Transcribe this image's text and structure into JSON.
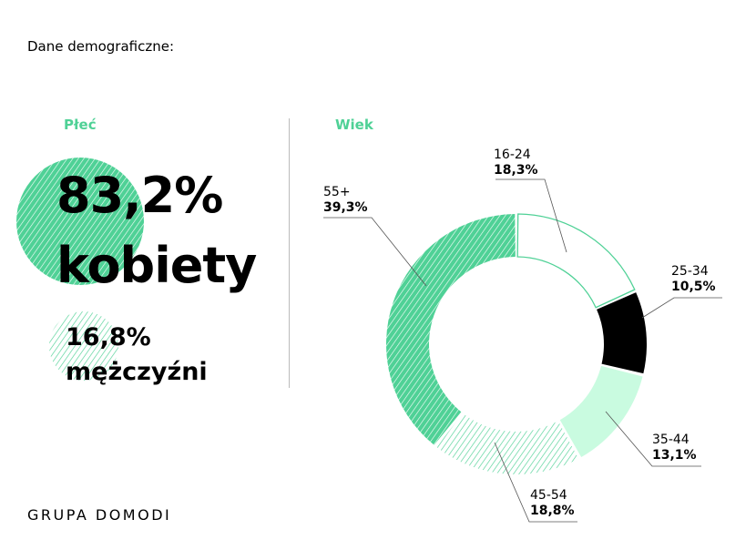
{
  "title": "Dane demograficzne:",
  "gender": {
    "heading": "Płeć",
    "women": {
      "value": "83,2%",
      "label": "kobiety"
    },
    "men": {
      "value": "16,8%",
      "label": "mężczyźni"
    }
  },
  "logo": "GRUPA DOMODI",
  "colors": {
    "green": "#4fd196",
    "mint": "#c9fbe0",
    "black": "#000000"
  },
  "chart_data": {
    "type": "pie",
    "title": "Wiek",
    "categories": [
      "16-24",
      "25-34",
      "35-44",
      "45-54",
      "55+"
    ],
    "values": [
      18.3,
      10.5,
      13.1,
      18.8,
      39.3
    ],
    "value_labels": [
      "18,3%",
      "10,5%",
      "13,1%",
      "18,8%",
      "39,3%"
    ],
    "styles": [
      "outline",
      "black",
      "mint",
      "light-hatch",
      "green-hatch"
    ]
  }
}
